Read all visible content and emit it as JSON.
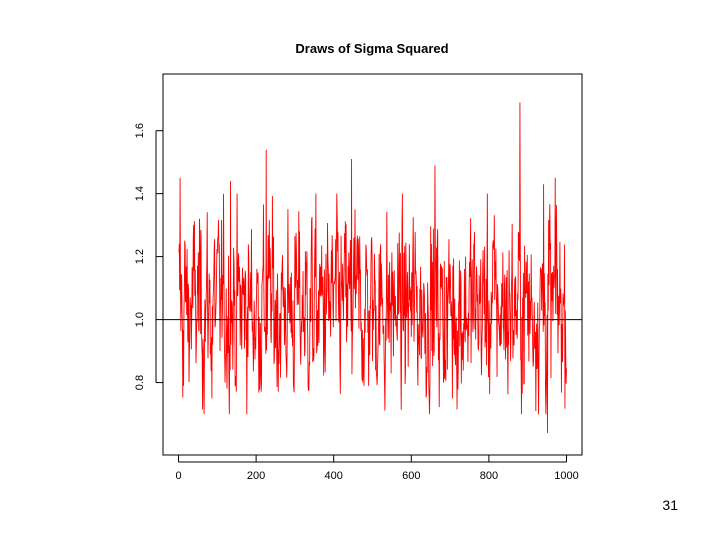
{
  "slide": {
    "number": "31"
  },
  "chart_data": {
    "type": "line",
    "title": "Draws of Sigma Squared",
    "xlabel": "",
    "ylabel": "",
    "xlim": [
      -40,
      1040
    ],
    "ylim": [
      0.57,
      1.78
    ],
    "x_ticks": [
      0,
      200,
      400,
      600,
      800,
      1000
    ],
    "x_tick_labels": [
      "0",
      "200",
      "400",
      "600",
      "800",
      "1000"
    ],
    "y_ticks": [
      0.8,
      1.0,
      1.2,
      1.4,
      1.6
    ],
    "y_tick_labels": [
      "0.8",
      "1.0",
      "1.2",
      "1.4",
      "1.6"
    ],
    "reference_line": {
      "y": 1.0,
      "color": "#000000"
    },
    "grid": false,
    "series": [
      {
        "color": "#ff0000",
        "n": 1000,
        "center": 1.04,
        "note_values": "dense trace of 1000 MCMC draws; approx range 0.64 to 1.69",
        "notable_points": [
          {
            "x": 3,
            "y": 1.45
          },
          {
            "x": 12,
            "y": 0.79
          },
          {
            "x": 85,
            "y": 0.75
          },
          {
            "x": 133,
            "y": 1.44
          },
          {
            "x": 225,
            "y": 1.54
          },
          {
            "x": 445,
            "y": 1.51
          },
          {
            "x": 660,
            "y": 1.49
          },
          {
            "x": 705,
            "y": 0.75
          },
          {
            "x": 879,
            "y": 1.69
          },
          {
            "x": 940,
            "y": 1.43
          },
          {
            "x": 950,
            "y": 0.64
          },
          {
            "x": 970,
            "y": 1.45
          }
        ]
      }
    ]
  }
}
